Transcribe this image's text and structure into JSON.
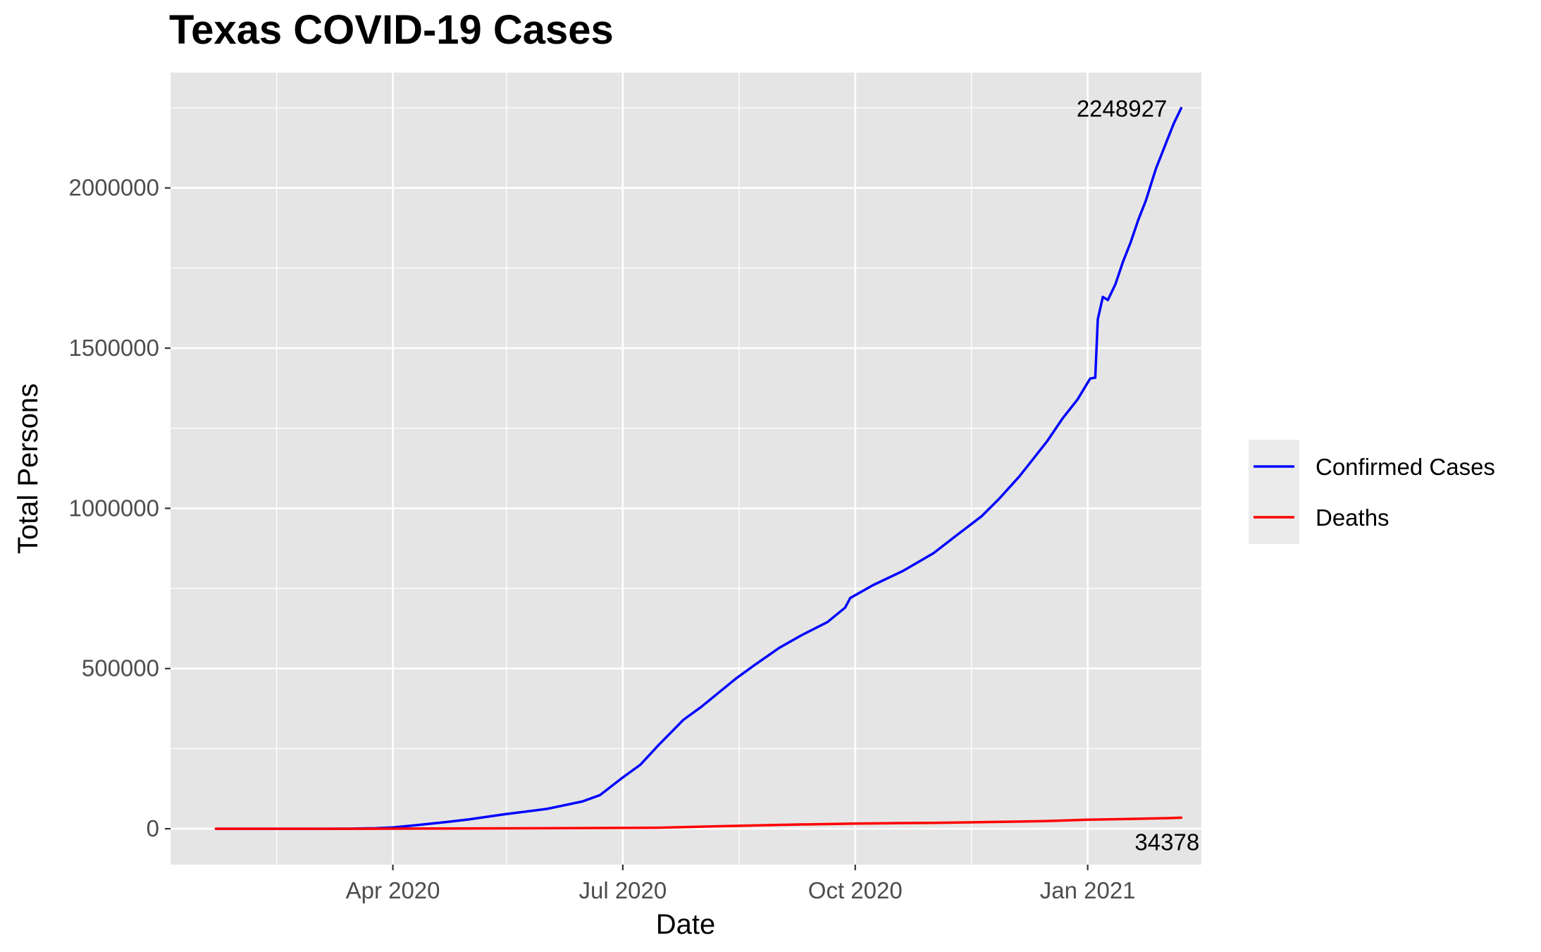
{
  "chart_data": {
    "type": "line",
    "title": "Texas COVID-19 Cases",
    "xlabel": "Date",
    "ylabel": "Total Persons",
    "x_tick_labels": [
      "Apr 2020",
      "Jul 2020",
      "Oct 2020",
      "Jan 2021"
    ],
    "x_ticks": [
      "2020-04-01",
      "2020-07-01",
      "2020-10-01",
      "2021-01-01"
    ],
    "x_minor_ticks": [
      "2020-02-15",
      "2020-05-16",
      "2020-08-16",
      "2020-11-16"
    ],
    "xlim": [
      "2020-01-04",
      "2021-02-15"
    ],
    "y_tick_labels": [
      "0",
      "500000",
      "1000000",
      "1500000",
      "2000000"
    ],
    "y_ticks": [
      0,
      500000,
      1000000,
      1500000,
      2000000
    ],
    "ylim": [
      -112000,
      2360000
    ],
    "grid": true,
    "legend_position": "right",
    "annotations": {
      "cases_last": "2248927",
      "deaths_last": "34378"
    },
    "series": [
      {
        "name": "Confirmed Cases",
        "color": "#0000ff",
        "points": [
          [
            "2020-01-22",
            0
          ],
          [
            "2020-03-01",
            0
          ],
          [
            "2020-03-15",
            100
          ],
          [
            "2020-03-25",
            1500
          ],
          [
            "2020-04-01",
            4000
          ],
          [
            "2020-04-10",
            11000
          ],
          [
            "2020-04-20",
            19000
          ],
          [
            "2020-05-01",
            29000
          ],
          [
            "2020-05-15",
            45000
          ],
          [
            "2020-06-01",
            62000
          ],
          [
            "2020-06-15",
            85000
          ],
          [
            "2020-06-22",
            105000
          ],
          [
            "2020-07-01",
            160000
          ],
          [
            "2020-07-08",
            200000
          ],
          [
            "2020-07-15",
            260000
          ],
          [
            "2020-07-20",
            300000
          ],
          [
            "2020-07-25",
            340000
          ],
          [
            "2020-08-01",
            380000
          ],
          [
            "2020-08-08",
            425000
          ],
          [
            "2020-08-15",
            470000
          ],
          [
            "2020-08-22",
            510000
          ],
          [
            "2020-09-01",
            565000
          ],
          [
            "2020-09-10",
            605000
          ],
          [
            "2020-09-20",
            645000
          ],
          [
            "2020-09-27",
            690000
          ],
          [
            "2020-09-29",
            720000
          ],
          [
            "2020-10-08",
            760000
          ],
          [
            "2020-10-20",
            805000
          ],
          [
            "2020-11-01",
            860000
          ],
          [
            "2020-11-10",
            915000
          ],
          [
            "2020-11-20",
            975000
          ],
          [
            "2020-11-27",
            1030000
          ],
          [
            "2020-12-05",
            1100000
          ],
          [
            "2020-12-10",
            1150000
          ],
          [
            "2020-12-16",
            1210000
          ],
          [
            "2020-12-22",
            1280000
          ],
          [
            "2020-12-28",
            1340000
          ],
          [
            "2021-01-02",
            1405000
          ],
          [
            "2021-01-04",
            1408000
          ],
          [
            "2021-01-05",
            1590000
          ],
          [
            "2021-01-07",
            1660000
          ],
          [
            "2021-01-09",
            1650000
          ],
          [
            "2021-01-12",
            1700000
          ],
          [
            "2021-01-15",
            1770000
          ],
          [
            "2021-01-18",
            1830000
          ],
          [
            "2021-01-21",
            1900000
          ],
          [
            "2021-01-24",
            1960000
          ],
          [
            "2021-01-28",
            2060000
          ],
          [
            "2021-02-01",
            2140000
          ],
          [
            "2021-02-04",
            2200000
          ],
          [
            "2021-02-07",
            2248927
          ]
        ]
      },
      {
        "name": "Deaths",
        "color": "#ff0000",
        "points": [
          [
            "2020-01-22",
            0
          ],
          [
            "2020-03-20",
            0
          ],
          [
            "2020-04-15",
            500
          ],
          [
            "2020-05-15",
            1300
          ],
          [
            "2020-06-15",
            2100
          ],
          [
            "2020-07-01",
            2500
          ],
          [
            "2020-07-15",
            3200
          ],
          [
            "2020-08-01",
            6500
          ],
          [
            "2020-08-15",
            9000
          ],
          [
            "2020-09-01",
            12000
          ],
          [
            "2020-09-15",
            14000
          ],
          [
            "2020-10-01",
            16000
          ],
          [
            "2020-10-15",
            17300
          ],
          [
            "2020-11-01",
            18500
          ],
          [
            "2020-11-15",
            20000
          ],
          [
            "2020-12-01",
            22000
          ],
          [
            "2020-12-15",
            24000
          ],
          [
            "2021-01-01",
            28000
          ],
          [
            "2021-01-15",
            30000
          ],
          [
            "2021-02-01",
            33000
          ],
          [
            "2021-02-07",
            34378
          ]
        ]
      }
    ]
  }
}
